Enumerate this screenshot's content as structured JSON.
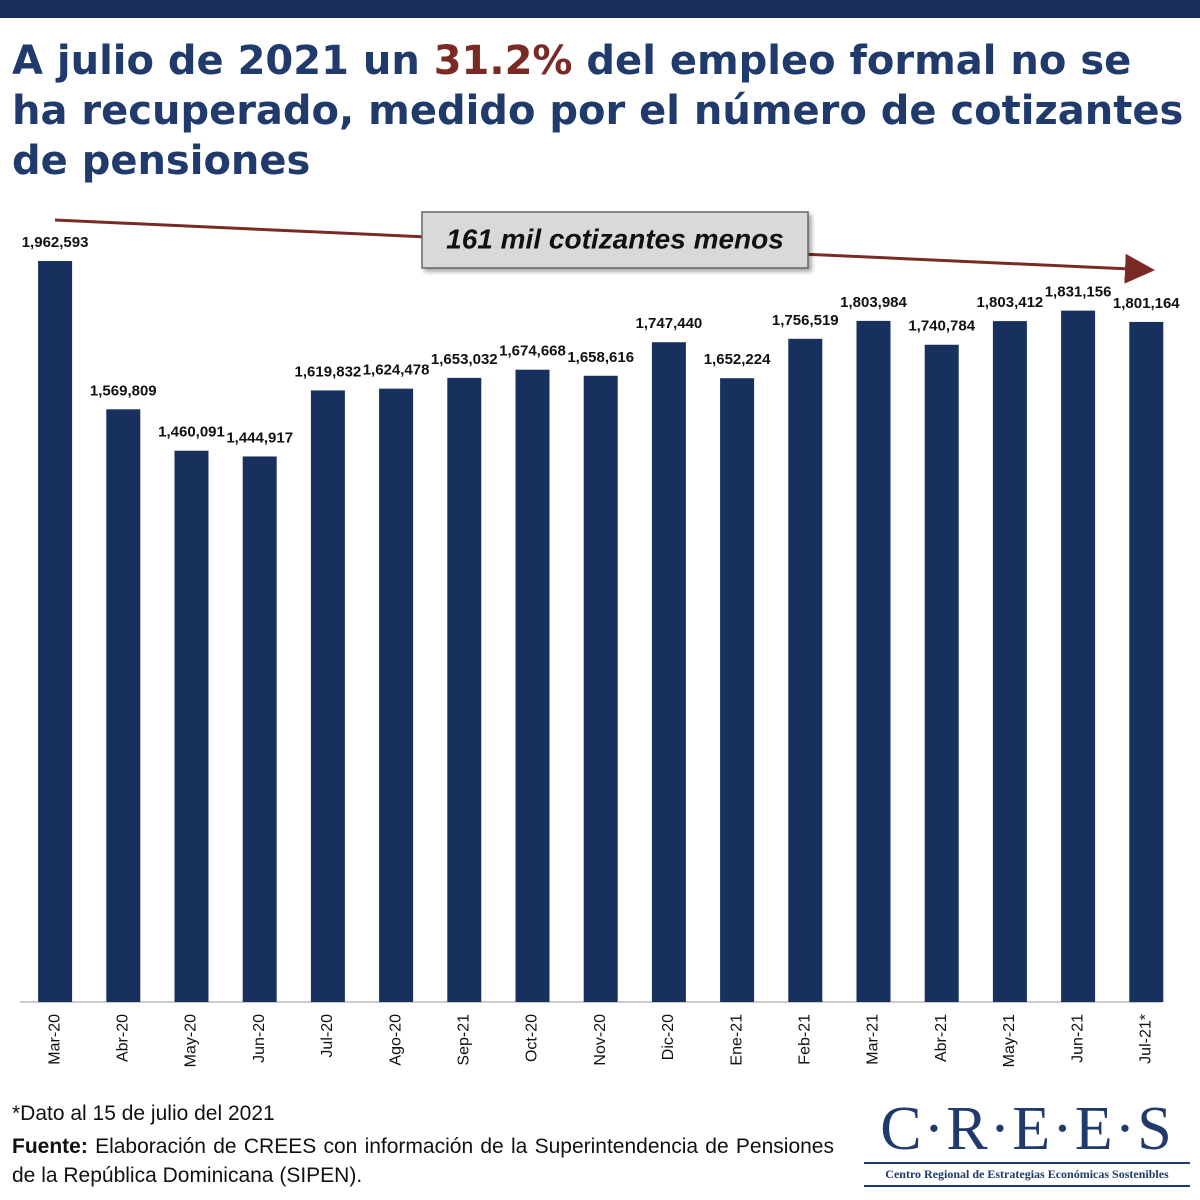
{
  "chart_data": {
    "type": "bar",
    "title": {
      "before": "A julio de 2021 un ",
      "highlight": "31.2%",
      "after": " del empleo formal no se ha recuperado, medido por el número de cotizantes de pensiones"
    },
    "annotation": "161 mil cotizantes menos",
    "categories": [
      "Mar-20",
      "Abr-20",
      "May-20",
      "Jun-20",
      "Jul-20",
      "Ago-20",
      "Sep-21",
      "Oct-20",
      "Nov-20",
      "Dic-20",
      "Ene-21",
      "Feb-21",
      "Mar-21",
      "Abr-21",
      "May-21",
      "Jun-21",
      "Jul-21*"
    ],
    "values": [
      1962593,
      1569809,
      1460091,
      1444917,
      1619832,
      1624478,
      1653032,
      1674668,
      1658616,
      1747440,
      1652224,
      1756519,
      1803984,
      1740784,
      1803412,
      1831156,
      1801164
    ],
    "value_labels": [
      "1,962,593",
      "1,569,809",
      "1,460,091",
      "1,444,917",
      "1,619,832",
      "1,624,478",
      "1,653,032",
      "1,674,668",
      "1,658,616",
      "1,747,440",
      "1,652,224",
      "1,756,519",
      "1,803,984",
      "1,740,784",
      "1,803,412",
      "1,831,156",
      "1,801,164"
    ],
    "color": "#17305e",
    "footnote": "*Dato al 15 de julio del 2021",
    "source_label": "Fuente:",
    "source": " Elaboración de CREES con información de la Superintendencia de Pensiones de la República Dominicana (SIPEN)."
  },
  "logo": {
    "name": "C·R·E·E·S",
    "subtitle": "Centro Regional de Estrategias Económicas Sostenibles"
  }
}
